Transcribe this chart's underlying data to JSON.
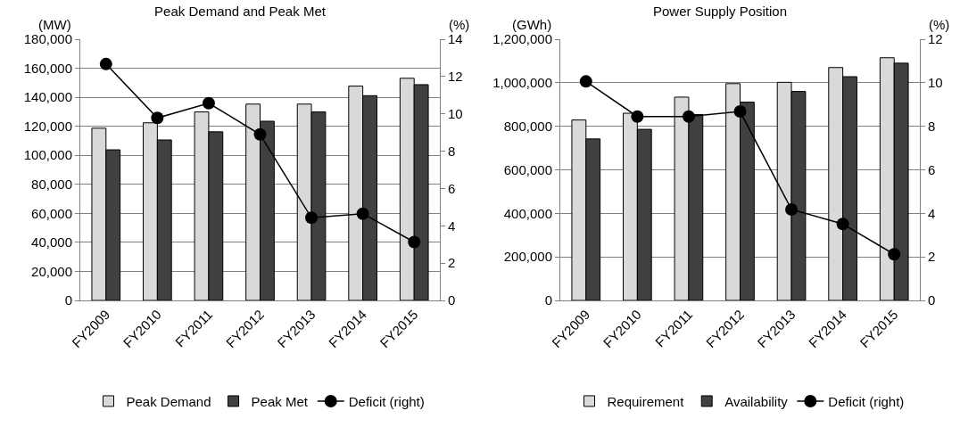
{
  "chart_data": [
    {
      "type": "bar",
      "title": "Peak Demand and Peak Met",
      "ylabel": "(MW)",
      "y2label": "(%)",
      "categories": [
        "FY2009",
        "FY2010",
        "FY2011",
        "FY2012",
        "FY2013",
        "FY2014",
        "FY2015"
      ],
      "series": [
        {
          "name": "Peak Demand",
          "color": "#d9d9d9",
          "values": [
            118700,
            122400,
            129900,
            135300,
            135300,
            147700,
            153100
          ]
        },
        {
          "name": "Peak Met",
          "color": "#404040",
          "values": [
            103800,
            110600,
            116200,
            123500,
            129900,
            141100,
            148700
          ]
        },
        {
          "name": "Deficit (right)",
          "type": "line",
          "axis": "y2",
          "color": "#000000",
          "values": [
            12.67,
            9.78,
            10.57,
            8.9,
            4.43,
            4.65,
            3.13
          ]
        }
      ],
      "ylim": [
        0,
        180000
      ],
      "yticks": [
        {
          "value": 0,
          "label": "0"
        },
        {
          "value": 20000,
          "label": "20,000"
        },
        {
          "value": 40000,
          "label": "40,000"
        },
        {
          "value": 60000,
          "label": "60,000"
        },
        {
          "value": 80000,
          "label": "80,000"
        },
        {
          "value": 100000,
          "label": "100,000"
        },
        {
          "value": 120000,
          "label": "120,000"
        },
        {
          "value": 140000,
          "label": "140,000"
        },
        {
          "value": 160000,
          "label": "160,000"
        },
        {
          "value": 180000,
          "label": "180,000"
        }
      ],
      "y2lim": [
        0,
        14
      ],
      "y2ticks": [
        0,
        2,
        4,
        6,
        8,
        10,
        12,
        14
      ],
      "grid": "y",
      "legend": "bottom",
      "marker": "circle",
      "line_style": "solid"
    },
    {
      "type": "bar",
      "title": "Power Supply Position",
      "ylabel": "(GWh)",
      "y2label": "(%)",
      "categories": [
        "FY2009",
        "FY2010",
        "FY2011",
        "FY2012",
        "FY2013",
        "FY2014",
        "FY2015"
      ],
      "series": [
        {
          "name": "Requirement",
          "color": "#d9d9d9",
          "values": [
            829000,
            860000,
            934000,
            996000,
            1002000,
            1070000,
            1115000
          ]
        },
        {
          "name": "Availability",
          "color": "#404040",
          "values": [
            742000,
            786000,
            854000,
            911000,
            960000,
            1028000,
            1090000
          ]
        },
        {
          "name": "Deficit (right)",
          "type": "line",
          "axis": "y2",
          "color": "#000000",
          "values": [
            10.06,
            8.45,
            8.45,
            8.68,
            4.18,
            3.51,
            2.12
          ]
        }
      ],
      "ylim": [
        0,
        1200000
      ],
      "yticks": [
        {
          "value": 0,
          "label": "0"
        },
        {
          "value": 200000,
          "label": "200,000"
        },
        {
          "value": 400000,
          "label": "400,000"
        },
        {
          "value": 600000,
          "label": "600,000"
        },
        {
          "value": 800000,
          "label": "800,000"
        },
        {
          "value": 1000000,
          "label": "1,000,000"
        },
        {
          "value": 1200000,
          "label": "1,200,000"
        }
      ],
      "y2lim": [
        0,
        12
      ],
      "y2ticks": [
        0,
        2,
        4,
        6,
        8,
        10,
        12
      ],
      "grid": "y",
      "legend": "bottom",
      "marker": "circle",
      "line_style": "solid"
    }
  ]
}
